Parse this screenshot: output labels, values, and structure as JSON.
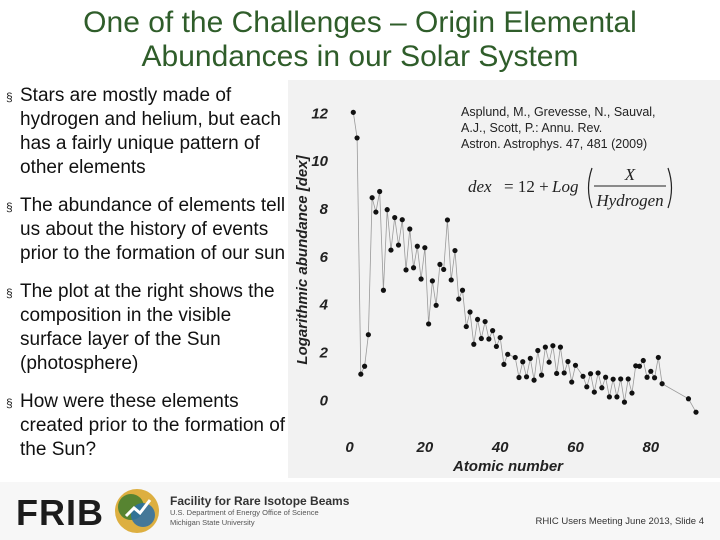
{
  "slide": {
    "title_line1": "One of the Challenges – Origin Elemental",
    "title_line2": "Abundances in our Solar System",
    "bullets": [
      "Stars are mostly made of hydrogen and helium, but each has a fairly unique pattern of other elements",
      "The abundance of elements tell us about the history of events prior to the formation of our sun",
      "The plot at the right shows the composition in the visible surface layer of the Sun (photosphere)",
      "How were these elements created prior to the formation of the Sun?"
    ],
    "bullet_mark": "§"
  },
  "chart_data": {
    "type": "scatter",
    "xlabel": "Atomic number",
    "ylabel": "Logarithmic abundance [dex]",
    "xlim": [
      -2,
      92
    ],
    "ylim": [
      -0.7,
      12.6
    ],
    "xticks": [
      "0",
      "20",
      "40",
      "60",
      "80"
    ],
    "yticks": [
      "0",
      "2",
      "4",
      "6",
      "8",
      "10",
      "12"
    ],
    "citation": "Asplund, M., Grevesse, N., Sauval, A.J., Scott, P.: Annu. Rev. Astron. Astrophys. 47, 481 (2009)",
    "formula": {
      "lhs": "dex",
      "eq": "= 12 +",
      "log": "Log",
      "num": "X",
      "den": "Hydrogen"
    },
    "grid": false,
    "connected": true,
    "series": [
      {
        "x": [
          1,
          2,
          3,
          4,
          5,
          6,
          7,
          8,
          9,
          10,
          11,
          12,
          13,
          14,
          15,
          16,
          17,
          18,
          19,
          20,
          21,
          22,
          23,
          24,
          25,
          26,
          27,
          28,
          29,
          30,
          31,
          32,
          33,
          34,
          35,
          36,
          37,
          38,
          39,
          40,
          41,
          42,
          44,
          45,
          46,
          47,
          48,
          49,
          50,
          51,
          52,
          53,
          54,
          55,
          56,
          57,
          58,
          59,
          60,
          62,
          63,
          64,
          65,
          66,
          67,
          68,
          69,
          70,
          71,
          72,
          73,
          74,
          75,
          76,
          77,
          78,
          79,
          80,
          81,
          82,
          83,
          90,
          92
        ],
        "y": [
          12.0,
          10.93,
          1.05,
          1.38,
          2.7,
          8.43,
          7.83,
          8.69,
          4.56,
          7.93,
          6.24,
          7.6,
          6.45,
          7.51,
          5.41,
          7.12,
          5.5,
          6.4,
          5.03,
          6.34,
          3.15,
          4.95,
          3.93,
          5.64,
          5.43,
          7.5,
          4.99,
          6.22,
          4.19,
          4.56,
          3.04,
          3.65,
          2.3,
          3.34,
          2.54,
          3.25,
          2.52,
          2.87,
          2.21,
          2.58,
          1.46,
          1.88,
          1.75,
          0.91,
          1.57,
          0.94,
          1.71,
          0.8,
          2.04,
          1.01,
          2.18,
          1.55,
          2.24,
          1.08,
          2.18,
          1.1,
          1.58,
          0.72,
          1.42,
          0.96,
          0.52,
          1.07,
          0.3,
          1.1,
          0.48,
          0.92,
          0.1,
          0.84,
          0.1,
          0.85,
          -0.12,
          0.85,
          0.26,
          1.4,
          1.38,
          1.62,
          0.92,
          1.17,
          0.9,
          1.75,
          0.65,
          0.02,
          -0.54
        ]
      }
    ]
  },
  "footer": {
    "logo_text": "FRIB",
    "org_line1": "Facility for Rare Isotope Beams",
    "org_line2": "U.S. Department of Energy Office of Science",
    "org_line3": "Michigan State University",
    "slide_info": "RHIC Users Meeting June 2013, Slide 4",
    "colors": {
      "title": "#2f5d2a",
      "logo_gold": "#d9a62b",
      "logo_green": "#3f7d2f",
      "logo_blue": "#2a6fa8"
    }
  }
}
